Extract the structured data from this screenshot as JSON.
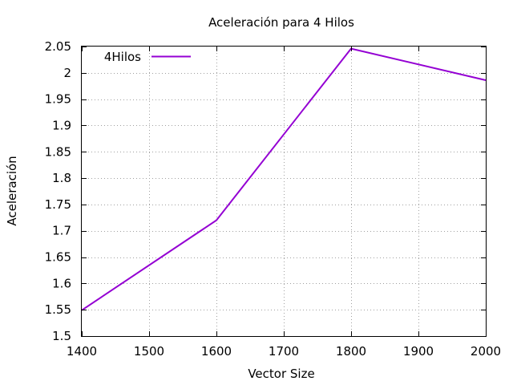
{
  "chart_data": {
    "type": "line",
    "title": "Aceleración para 4 Hilos",
    "xlabel": "Vector Size",
    "ylabel": "Aceleración",
    "xlim": [
      1400,
      2000
    ],
    "ylim": [
      1.5,
      2.05
    ],
    "xticks": [
      1400,
      1500,
      1600,
      1700,
      1800,
      1900,
      2000
    ],
    "yticks": [
      1.5,
      1.55,
      1.6,
      1.65,
      1.7,
      1.75,
      1.8,
      1.85,
      1.9,
      1.95,
      2,
      2.05
    ],
    "grid": true,
    "legend_position": "top-left",
    "series": [
      {
        "name": "4Hilos",
        "color": "#9400d3",
        "x": [
          1400,
          1600,
          1800,
          2000
        ],
        "values": [
          1.549,
          1.72,
          2.046,
          1.986
        ]
      }
    ]
  }
}
